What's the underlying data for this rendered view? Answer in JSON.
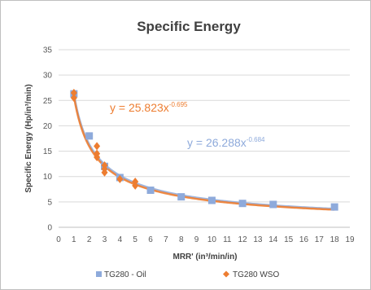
{
  "chart_data": {
    "type": "scatter",
    "title": "Specific Energy",
    "xlabel": "MRR' (in³/min/in)",
    "ylabel": "Specific Energy (Hp/in³/min)",
    "xlim": [
      0,
      19
    ],
    "ylim": [
      0,
      35
    ],
    "x_ticks": [
      0,
      1,
      2,
      3,
      4,
      5,
      6,
      7,
      8,
      9,
      10,
      11,
      12,
      13,
      14,
      15,
      16,
      17,
      18,
      19
    ],
    "y_ticks": [
      0,
      5,
      10,
      15,
      20,
      25,
      30,
      35
    ],
    "grid": "horizontal",
    "legend_position": "bottom",
    "series": [
      {
        "name": "TG280 - Oil",
        "marker": "square",
        "color": "#8eaadb",
        "points": [
          {
            "x": 1.0,
            "y": 26.3
          },
          {
            "x": 2.0,
            "y": 18.0
          },
          {
            "x": 3.0,
            "y": 12.0
          },
          {
            "x": 4.0,
            "y": 9.8
          },
          {
            "x": 6.0,
            "y": 7.3
          },
          {
            "x": 8.0,
            "y": 6.0
          },
          {
            "x": 10.0,
            "y": 5.3
          },
          {
            "x": 12.0,
            "y": 4.7
          },
          {
            "x": 14.0,
            "y": 4.5
          },
          {
            "x": 18.0,
            "y": 4.0
          }
        ],
        "trendline": {
          "equation": "y = 26.288x",
          "exponent": "-0.684",
          "a": 26.288,
          "b": -0.684,
          "color": "#8eaadb"
        }
      },
      {
        "name": "TG280 WSO",
        "marker": "diamond",
        "color": "#ed7d31",
        "points": [
          {
            "x": 1.0,
            "y": 26.5
          },
          {
            "x": 1.0,
            "y": 25.5
          },
          {
            "x": 2.5,
            "y": 16.0
          },
          {
            "x": 2.5,
            "y": 14.5
          },
          {
            "x": 2.5,
            "y": 13.8
          },
          {
            "x": 3.0,
            "y": 12.2
          },
          {
            "x": 3.0,
            "y": 11.5
          },
          {
            "x": 3.0,
            "y": 10.8
          },
          {
            "x": 4.0,
            "y": 9.5
          },
          {
            "x": 5.0,
            "y": 9.0
          },
          {
            "x": 5.0,
            "y": 8.2
          }
        ],
        "trendline": {
          "equation": "y = 25.823x",
          "exponent": "-0.695",
          "a": 25.823,
          "b": -0.695,
          "color": "#ed7d31"
        }
      }
    ]
  }
}
